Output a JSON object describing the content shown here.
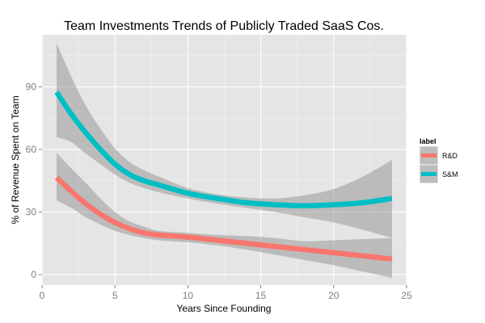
{
  "chart_data": {
    "type": "line",
    "title": "Team Investments Trends of Publicly Traded SaaS Cos.",
    "xlabel": "Years Since Founding",
    "ylabel": "% of Revenue Spent on Team",
    "xlim": [
      0,
      25
    ],
    "ylim": [
      -5,
      115
    ],
    "x_ticks": [
      0,
      5,
      10,
      15,
      20,
      25
    ],
    "y_ticks": [
      0,
      30,
      60,
      90
    ],
    "grid": true,
    "legend": {
      "title": "label",
      "placement": "right"
    },
    "series": [
      {
        "name": "R&D",
        "color": "#f8766d",
        "x": [
          1,
          2,
          3,
          4,
          5,
          6,
          7,
          8,
          10,
          12,
          14,
          16,
          18,
          20,
          22,
          24
        ],
        "y": [
          46.5,
          40,
          34,
          29,
          25,
          22,
          20,
          19,
          18,
          16.5,
          15,
          13.5,
          12,
          10.5,
          9,
          7.5
        ],
        "upper": [
          58.5,
          51,
          44,
          36.5,
          30,
          25.5,
          23,
          21,
          20,
          19,
          18.5,
          17.5,
          16,
          16.5,
          17,
          17.5
        ],
        "lower": [
          35.5,
          32,
          27.5,
          24,
          21,
          19,
          17.5,
          16.5,
          15.5,
          14,
          12,
          9.5,
          7,
          4.5,
          1.5,
          -1.5
        ]
      },
      {
        "name": "S&M",
        "color": "#00bfc4",
        "x": [
          1,
          2,
          3,
          4,
          5,
          6,
          7,
          8,
          10,
          12,
          14,
          16,
          18,
          20,
          22,
          24
        ],
        "y": [
          87.5,
          77,
          68,
          60,
          53,
          48,
          45,
          43,
          39,
          36.5,
          34.5,
          33.5,
          33,
          33.5,
          34.5,
          36.5
        ],
        "upper": [
          111,
          95,
          81,
          70,
          60.5,
          54,
          50,
          47,
          41.5,
          38.5,
          37,
          36.5,
          38,
          41,
          47,
          55
        ],
        "lower": [
          66,
          63.5,
          58,
          53,
          48,
          44,
          41.5,
          39.5,
          36.5,
          34,
          32,
          30,
          27.5,
          25,
          21.5,
          17.5
        ]
      }
    ]
  }
}
